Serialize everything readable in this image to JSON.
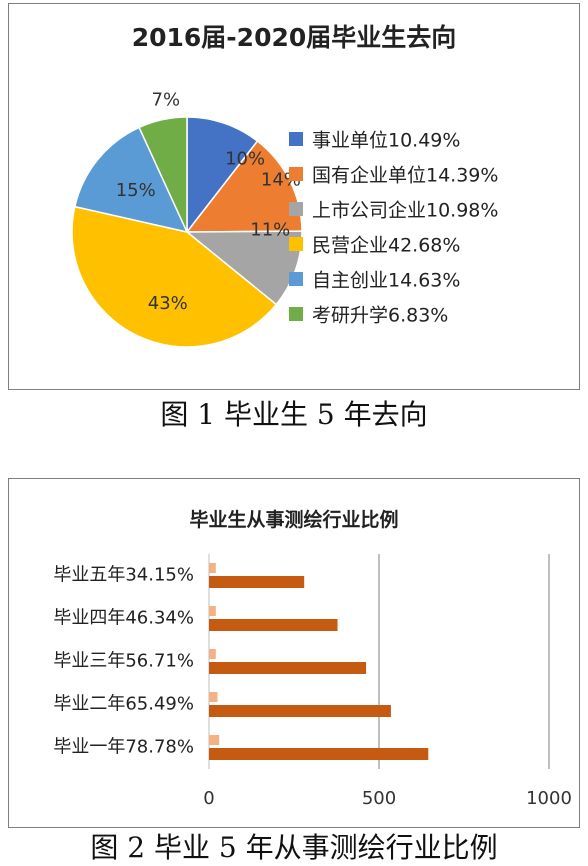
{
  "chart_data": [
    {
      "type": "pie",
      "title": "2016届-2020届毕业生去向",
      "caption": "图 1  毕业生 5 年去向",
      "slices": [
        {
          "label": "事业单位10.49%",
          "value": 10.49,
          "data_label": "10%",
          "color": "#4472c4"
        },
        {
          "label": "国有企业单位14.39%",
          "value": 14.39,
          "data_label": "14%",
          "color": "#ed7d31"
        },
        {
          "label": "上市公司企业10.98%",
          "value": 10.98,
          "data_label": "11%",
          "color": "#a5a5a5"
        },
        {
          "label": "民营企业42.68%",
          "value": 42.68,
          "data_label": "43%",
          "color": "#ffc000"
        },
        {
          "label": "自主创业14.63%",
          "value": 14.63,
          "data_label": "15%",
          "color": "#5b9bd5"
        },
        {
          "label": "考研升学6.83%",
          "value": 6.83,
          "data_label": "7%",
          "color": "#70ad47"
        }
      ],
      "legend": "right"
    },
    {
      "type": "bar",
      "orientation": "horizontal",
      "title": "毕业生从事测绘行业比例",
      "caption": "图 2  毕业 5 年从事测绘行业比例",
      "categories": [
        "毕业一年78.78%",
        "毕业二年65.49%",
        "毕业三年56.71%",
        "毕业四年46.34%",
        "毕业五年34.15%"
      ],
      "series": [
        {
          "values": [
            30,
            25,
            20,
            20,
            20
          ],
          "color": "#f4b183"
        },
        {
          "values": [
            645,
            535,
            462,
            378,
            280
          ],
          "color": "#c55a11"
        }
      ],
      "xlim": [
        0,
        1000
      ],
      "xticks": [
        "0",
        "500",
        "1000"
      ],
      "grid": true
    }
  ]
}
